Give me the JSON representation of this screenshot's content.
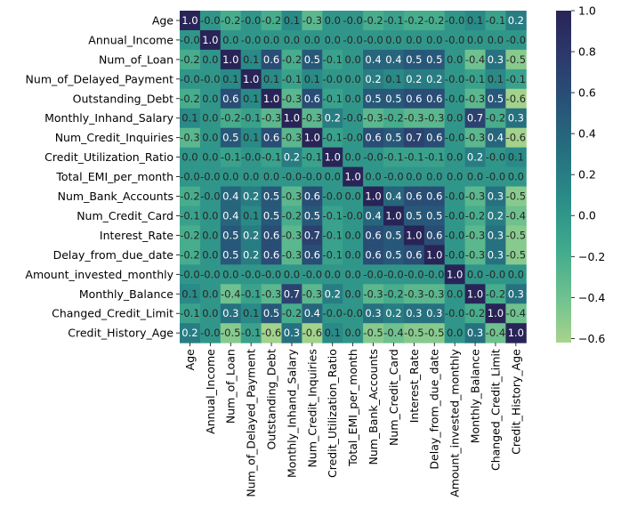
{
  "chart_data": {
    "type": "heatmap",
    "title": "",
    "xlabel": "",
    "ylabel": "",
    "variables": [
      "Age",
      "Annual_Income",
      "Num_of_Loan",
      "Num_of_Delayed_Payment",
      "Outstanding_Debt",
      "Monthly_Inhand_Salary",
      "Num_Credit_Inquiries",
      "Credit_Utilization_Ratio",
      "Total_EMI_per_month",
      "Num_Bank_Accounts",
      "Num_Credit_Card",
      "Interest_Rate",
      "Delay_from_due_date",
      "Amount_invested_monthly",
      "Monthly_Balance",
      "Changed_Credit_Limit",
      "Credit_History_Age"
    ],
    "matrix": [
      [
        1.0,
        -0.0,
        -0.2,
        -0.0,
        -0.2,
        0.1,
        -0.3,
        0.0,
        -0.0,
        -0.2,
        -0.1,
        -0.2,
        -0.2,
        -0.0,
        0.1,
        -0.1,
        0.2
      ],
      [
        -0.0,
        1.0,
        0.0,
        -0.0,
        0.0,
        0.0,
        0.0,
        0.0,
        -0.0,
        -0.0,
        0.0,
        0.0,
        0.0,
        -0.0,
        0.0,
        0.0,
        -0.0
      ],
      [
        -0.2,
        0.0,
        1.0,
        0.1,
        0.6,
        -0.2,
        0.5,
        -0.1,
        0.0,
        0.4,
        0.4,
        0.5,
        0.5,
        0.0,
        -0.4,
        0.3,
        -0.5
      ],
      [
        -0.0,
        -0.0,
        0.1,
        1.0,
        0.1,
        -0.1,
        0.1,
        -0.0,
        0.0,
        0.2,
        0.1,
        0.2,
        0.2,
        -0.0,
        -0.1,
        0.1,
        -0.1
      ],
      [
        -0.2,
        0.0,
        0.6,
        0.1,
        1.0,
        -0.3,
        0.6,
        -0.1,
        0.0,
        0.5,
        0.5,
        0.6,
        0.6,
        -0.0,
        -0.3,
        0.5,
        -0.6
      ],
      [
        0.1,
        0.0,
        -0.2,
        -0.1,
        -0.3,
        1.0,
        -0.3,
        0.2,
        -0.0,
        -0.3,
        -0.2,
        -0.3,
        -0.3,
        0.0,
        0.7,
        -0.2,
        0.3
      ],
      [
        -0.3,
        0.0,
        0.5,
        0.1,
        0.6,
        -0.3,
        1.0,
        -0.1,
        -0.0,
        0.6,
        0.5,
        0.7,
        0.6,
        -0.0,
        -0.3,
        0.4,
        -0.6
      ],
      [
        0.0,
        0.0,
        -0.1,
        -0.0,
        -0.1,
        0.2,
        -0.1,
        1.0,
        0.0,
        -0.0,
        -0.1,
        -0.1,
        -0.1,
        0.0,
        0.2,
        -0.0,
        0.1
      ],
      [
        -0.0,
        -0.0,
        0.0,
        0.0,
        0.0,
        -0.0,
        -0.0,
        0.0,
        1.0,
        0.0,
        -0.0,
        0.0,
        0.0,
        0.0,
        0.0,
        -0.0,
        0.0
      ],
      [
        -0.2,
        -0.0,
        0.4,
        0.2,
        0.5,
        -0.3,
        0.6,
        -0.0,
        0.0,
        1.0,
        0.4,
        0.6,
        0.6,
        -0.0,
        -0.3,
        0.3,
        -0.5
      ],
      [
        -0.1,
        0.0,
        0.4,
        0.1,
        0.5,
        -0.2,
        0.5,
        -0.1,
        -0.0,
        0.4,
        1.0,
        0.5,
        0.5,
        -0.0,
        -0.2,
        0.2,
        -0.4
      ],
      [
        -0.2,
        0.0,
        0.5,
        0.2,
        0.6,
        -0.3,
        0.7,
        -0.1,
        0.0,
        0.6,
        0.5,
        1.0,
        0.6,
        -0.0,
        -0.3,
        0.3,
        -0.5
      ],
      [
        -0.2,
        0.0,
        0.5,
        0.2,
        0.6,
        -0.3,
        0.6,
        -0.1,
        0.0,
        0.6,
        0.5,
        0.6,
        1.0,
        -0.0,
        -0.3,
        0.3,
        -0.5
      ],
      [
        -0.0,
        -0.0,
        0.0,
        -0.0,
        -0.0,
        0.0,
        -0.0,
        0.0,
        0.0,
        -0.0,
        -0.0,
        -0.0,
        -0.0,
        1.0,
        0.0,
        -0.0,
        0.0
      ],
      [
        0.1,
        0.0,
        -0.4,
        -0.1,
        -0.3,
        0.7,
        -0.3,
        0.2,
        0.0,
        -0.3,
        -0.2,
        -0.3,
        -0.3,
        0.0,
        1.0,
        -0.2,
        0.3
      ],
      [
        -0.1,
        0.0,
        0.3,
        0.1,
        0.5,
        -0.2,
        0.4,
        -0.0,
        -0.0,
        0.3,
        0.2,
        0.3,
        0.3,
        -0.0,
        -0.2,
        1.0,
        -0.4
      ],
      [
        0.2,
        -0.0,
        -0.5,
        -0.1,
        -0.6,
        0.3,
        -0.6,
        0.1,
        0.0,
        -0.5,
        -0.4,
        -0.5,
        -0.5,
        0.0,
        0.3,
        -0.4,
        1.0
      ]
    ],
    "colorbar": {
      "min": -0.62,
      "max": 1.0,
      "ticks": [
        "1.0",
        "0.8",
        "0.6",
        "0.4",
        "0.2",
        "0.0",
        "−0.2",
        "−0.4",
        "−0.6"
      ],
      "tick_values": [
        1.0,
        0.8,
        0.6,
        0.4,
        0.2,
        0.0,
        -0.2,
        -0.4,
        -0.6
      ]
    },
    "colormap": [
      "#a7d48c",
      "#6cc08f",
      "#3fa98d",
      "#2a8d88",
      "#26707f",
      "#285478",
      "#2c3a6c",
      "#292457"
    ],
    "grid": false,
    "legend": "colorbar-right"
  }
}
